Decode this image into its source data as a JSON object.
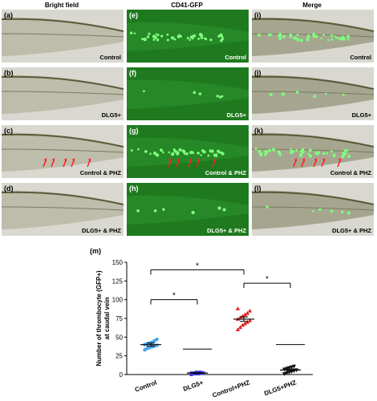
{
  "column_titles": [
    "Bright field",
    "CD41-GFP",
    "Merge"
  ],
  "panels": [
    {
      "label": "(a)",
      "condition": "Control",
      "type": "bright"
    },
    {
      "label": "(b)",
      "condition": "DLG5+",
      "type": "bright"
    },
    {
      "label": "(c)",
      "condition": "Control & PHZ",
      "type": "bright"
    },
    {
      "label": "(d)",
      "condition": "DLG5+ & PHZ",
      "type": "bright"
    },
    {
      "label": "(e)",
      "condition": "Control",
      "type": "fluor"
    },
    {
      "label": "(f)",
      "condition": "DLG5+",
      "type": "fluor"
    },
    {
      "label": "(g)",
      "condition": "Control & PHZ",
      "type": "fluor"
    },
    {
      "label": "(h)",
      "condition": "DLG5+ & PHZ",
      "type": "fluor"
    },
    {
      "label": "(i)",
      "condition": "Control",
      "type": "merge"
    },
    {
      "label": "(j)",
      "condition": "DLG5+",
      "type": "merge"
    },
    {
      "label": "(k)",
      "condition": "Control & PHZ",
      "type": "merge"
    },
    {
      "label": "(l)",
      "condition": "DLG5+ & PHZ",
      "type": "merge"
    }
  ],
  "chart_label": "(m)",
  "chart_data": {
    "type": "scatter",
    "ylabel": "Number of thrombocyte (GFP+) at caudal vein",
    "ylim": [
      0,
      150
    ],
    "yticks": [
      0,
      25,
      50,
      75,
      100,
      125,
      150
    ],
    "categories": [
      "Control",
      "DLG5+",
      "Control+PHZ",
      "DLG5+PHZ"
    ],
    "series": [
      {
        "values": [
          33,
          35,
          36,
          37,
          38,
          39,
          40,
          41,
          42,
          43,
          45,
          47
        ],
        "mean": 40,
        "sem": 2,
        "color": "#4da6e8",
        "marker": "circle"
      },
      {
        "values": [
          0,
          1,
          1,
          1,
          2,
          2,
          2,
          2,
          3,
          3,
          3
        ],
        "mean": 2,
        "sem": 0.5,
        "color": "#3a3ad6",
        "marker": "square"
      },
      {
        "values": [
          60,
          63,
          66,
          68,
          70,
          72,
          74,
          76,
          78,
          80,
          82,
          85,
          88
        ],
        "mean": 74,
        "sem": 3,
        "color": "#e02020",
        "marker": "triangle"
      },
      {
        "values": [
          1,
          2,
          3,
          4,
          5,
          6,
          7,
          8,
          9,
          10,
          11
        ],
        "mean": 6,
        "sem": 1.5,
        "color": "#111111",
        "marker": "triangle-down"
      }
    ],
    "significance": [
      {
        "from": 0,
        "to": 2,
        "label": "*"
      },
      {
        "from": 0,
        "to": 1,
        "label": "*"
      },
      {
        "from": 2,
        "to": 3,
        "label": "*"
      }
    ]
  }
}
